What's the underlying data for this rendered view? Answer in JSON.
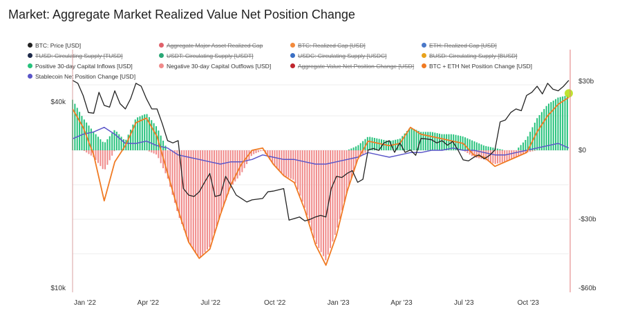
{
  "title": "Market: Aggregate Market Realized Value Net Position Change",
  "legend": [
    {
      "label": "BTC: Price [USD]",
      "color": "#222222",
      "enabled": true
    },
    {
      "label": "Aggregate Major Asset Realized Cap",
      "color": "#e0616a",
      "enabled": false
    },
    {
      "label": "BTC: Realized Cap [USD]",
      "color": "#f28a3c",
      "enabled": false
    },
    {
      "label": "ETH: Realized Cap [USD]",
      "color": "#4a78c8",
      "enabled": false
    },
    {
      "label": "TUSD: Circulating Supply [TUSD]",
      "color": "#1e2a4a",
      "enabled": false
    },
    {
      "label": "USDT: Circulating Supply [USDT]",
      "color": "#2aa876",
      "enabled": false
    },
    {
      "label": "USDC: Circulating Supply [USDC]",
      "color": "#3a6fc4",
      "enabled": false
    },
    {
      "label": "BUSD: Circulating Supply [BUSD]",
      "color": "#e8a21c",
      "enabled": false
    },
    {
      "label": "Positive 30-day Capital Inflows [USD]",
      "color": "#27c27c",
      "enabled": true
    },
    {
      "label": "Negative 30-day Capital Outflows [USD]",
      "color": "#f08a8a",
      "enabled": true
    },
    {
      "label": "Aggregate Value Net Position Change [USD]",
      "color": "#c0262e",
      "enabled": false
    },
    {
      "label": "BTC + ETH Net Position Change [USD]",
      "color": "#f07a22",
      "enabled": true
    },
    {
      "label": "Stablecoin Net Position Change [USD]",
      "color": "#5a55c8",
      "enabled": true
    }
  ],
  "chart_data": {
    "type": "line",
    "x_labels": [
      "Jan '22",
      "Apr '22",
      "Jul '22",
      "Oct '22",
      "Jan '23",
      "Apr '23",
      "Jul '23",
      "Oct '23"
    ],
    "x_label_months": [
      0,
      3,
      6,
      9,
      12,
      15,
      18,
      21
    ],
    "y_left": {
      "scale": "log",
      "ticks": [
        "$40k",
        "$10k"
      ],
      "tick_values": [
        40000,
        10000
      ]
    },
    "y_right": {
      "ticks": [
        "$30b",
        "$0",
        "-$30b",
        "-$60b"
      ],
      "tick_values": [
        30,
        0,
        -30,
        -60
      ],
      "ylim": [
        -60,
        30
      ],
      "unit": "b"
    },
    "grid": true,
    "series": [
      {
        "name": "BTC: Price [USD]",
        "axis": "left",
        "x": [
          0,
          0.25,
          0.5,
          0.75,
          1,
          1.25,
          1.5,
          1.75,
          2,
          2.25,
          2.5,
          2.75,
          3,
          3.25,
          3.5,
          3.75,
          4,
          4.25,
          4.5,
          4.75,
          5,
          5.25,
          5.5,
          5.75,
          6,
          6.25,
          6.5,
          6.75,
          7,
          7.25,
          7.5,
          7.75,
          8,
          8.25,
          8.5,
          8.75,
          9,
          9.25,
          9.5,
          9.75,
          10,
          10.25,
          10.5,
          10.75,
          11,
          11.25,
          11.5,
          11.75,
          12,
          12.25,
          12.5,
          12.75,
          13,
          13.25,
          13.5,
          13.75,
          14,
          14.25,
          14.5,
          14.75,
          15,
          15.25,
          15.5,
          15.75,
          16,
          16.25,
          16.5,
          16.75,
          17,
          17.25,
          17.5,
          17.75,
          18,
          18.25,
          18.5,
          18.75,
          19,
          19.25,
          19.5,
          19.75,
          20,
          20.25,
          20.5,
          20.75,
          21,
          21.25,
          21.5,
          21.75,
          22,
          22.25,
          22.5,
          22.75,
          23,
          23.25,
          23.5
        ],
        "y": [
          47000,
          46000,
          42000,
          37000,
          36800,
          43000,
          39000,
          38500,
          43500,
          39500,
          38000,
          41000,
          46000,
          45000,
          41000,
          38000,
          38000,
          34000,
          30000,
          29500,
          30000,
          21000,
          20000,
          19800,
          20500,
          22000,
          23500,
          19800,
          20000,
          23000,
          21500,
          20000,
          19500,
          19000,
          19300,
          19400,
          19500,
          20500,
          20600,
          20800,
          21000,
          16600,
          16800,
          17000,
          16500,
          16700,
          17000,
          17200,
          17000,
          21000,
          23000,
          22800,
          23500,
          24000,
          22000,
          22500,
          28000,
          28300,
          27900,
          29500,
          30000,
          27500,
          29500,
          27500,
          28000,
          26900,
          30500,
          30400,
          30200,
          29500,
          30000,
          29000,
          29800,
          28000,
          26000,
          25800,
          26500,
          27000,
          26200,
          26900,
          28000,
          34500,
          35000,
          37000,
          38000,
          37500,
          42000,
          43000,
          45000,
          42500,
          46000,
          44000,
          43500,
          45000,
          47000
        ]
      },
      {
        "name": "Positive 30-day Capital Inflows [USD]",
        "axis": "right",
        "x": [
          0,
          0.5,
          1,
          1.5,
          2,
          2.5,
          3,
          3.5,
          4,
          4.5,
          5,
          5.5,
          6,
          6.5,
          7,
          7.5,
          8,
          8.5,
          9,
          9.5,
          10,
          10.5,
          11,
          11.5,
          12,
          12.5,
          13,
          13.5,
          14,
          14.5,
          15,
          15.5,
          16,
          16.5,
          17,
          17.5,
          18,
          18.5,
          19,
          19.5,
          20,
          20.5,
          21,
          21.5,
          22,
          22.5,
          23,
          23.5
        ],
        "y": [
          22,
          14,
          8,
          3,
          9,
          4,
          14,
          16,
          10,
          0,
          0,
          0,
          0,
          0,
          0,
          0,
          0,
          0,
          0,
          0,
          0,
          0,
          0,
          0,
          0,
          0,
          0,
          2,
          6,
          5,
          4,
          5,
          10,
          8,
          8,
          7,
          7,
          6,
          4,
          2,
          1,
          0,
          0,
          5,
          14,
          20,
          23,
          24
        ]
      },
      {
        "name": "Negative 30-day Capital Outflows [USD]",
        "axis": "right",
        "x": [
          0,
          0.5,
          1,
          1.5,
          2,
          2.5,
          3,
          3.5,
          4,
          4.5,
          5,
          5.5,
          6,
          6.5,
          7,
          7.5,
          8,
          8.5,
          9,
          9.5,
          10,
          10.5,
          11,
          11.5,
          12,
          12.5,
          13,
          13.5,
          14,
          14.5,
          15,
          15.5,
          16,
          16.5,
          17,
          17.5,
          18,
          18.5,
          19,
          19.5,
          20,
          20.5,
          21,
          21.5,
          22,
          22.5,
          23,
          23.5
        ],
        "y": [
          0,
          0,
          -3,
          -9,
          0,
          0,
          0,
          0,
          -2,
          -12,
          -28,
          -40,
          -47,
          -42,
          -28,
          -16,
          -10,
          -2,
          0,
          -6,
          -11,
          -13,
          -25,
          -40,
          -48,
          -35,
          -18,
          -4,
          0,
          0,
          0,
          0,
          0,
          0,
          0,
          0,
          0,
          0,
          -3,
          -4,
          -6,
          -5,
          -3,
          -1,
          0,
          0,
          0,
          0
        ]
      },
      {
        "name": "BTC + ETH Net Position Change [USD]",
        "axis": "right",
        "x": [
          0,
          0.5,
          1,
          1.5,
          2,
          2.5,
          3,
          3.5,
          4,
          4.5,
          5,
          5.5,
          6,
          6.5,
          7,
          7.5,
          8,
          8.5,
          9,
          9.5,
          10,
          10.5,
          11,
          11.5,
          12,
          12.5,
          13,
          13.5,
          14,
          14.5,
          15,
          15.5,
          16,
          16.5,
          17,
          17.5,
          18,
          18.5,
          19,
          19.5,
          20,
          20.5,
          21,
          21.5,
          22,
          22.5,
          23,
          23.5
        ],
        "y": [
          18,
          10,
          -2,
          -22,
          -5,
          2,
          12,
          14,
          6,
          -10,
          -26,
          -40,
          -47,
          -43,
          -28,
          -15,
          -6,
          0,
          1,
          -6,
          -11,
          -14,
          -26,
          -41,
          -50,
          -37,
          -18,
          -4,
          4,
          3,
          2,
          3,
          10,
          7,
          6,
          5,
          4,
          3,
          -2,
          -3,
          -7,
          -5,
          -3,
          -1,
          8,
          15,
          20,
          23
        ]
      },
      {
        "name": "Stablecoin Net Position Change [USD]",
        "axis": "right",
        "x": [
          0,
          0.5,
          1,
          1.5,
          2,
          2.5,
          3,
          3.5,
          4,
          4.5,
          5,
          5.5,
          6,
          6.5,
          7,
          7.5,
          8,
          8.5,
          9,
          9.5,
          10,
          10.5,
          11,
          11.5,
          12,
          12.5,
          13,
          13.5,
          14,
          14.5,
          15,
          15.5,
          16,
          16.5,
          17,
          17.5,
          18,
          18.5,
          19,
          19.5,
          20,
          20.5,
          21,
          21.5,
          22,
          22.5,
          23,
          23.5
        ],
        "y": [
          5,
          7,
          8,
          10,
          7,
          3,
          3,
          4,
          2,
          1,
          -2,
          -3,
          -4,
          -5,
          -6,
          -5,
          -5,
          -4,
          -2,
          -3,
          -4,
          -4,
          -5,
          -6,
          -6,
          -5,
          -4,
          -3,
          -1,
          -2,
          -3,
          -2,
          -1,
          -1,
          0,
          0,
          1,
          0,
          0,
          -1,
          -2,
          -2,
          -1,
          0,
          1,
          2,
          3,
          1
        ]
      }
    ]
  }
}
